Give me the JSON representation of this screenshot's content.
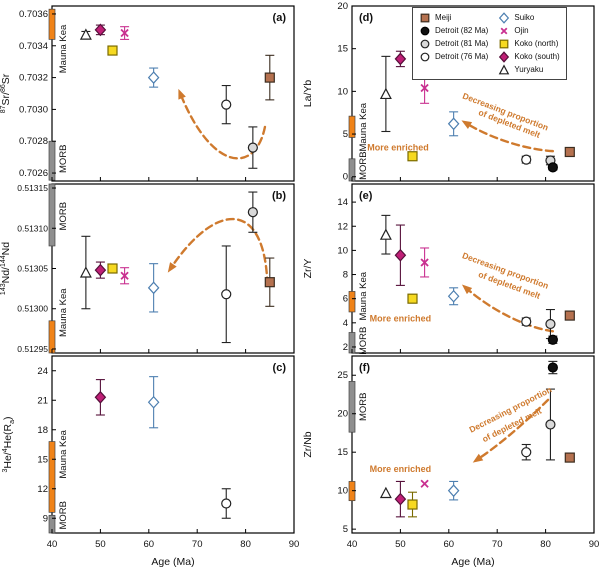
{
  "figure": {
    "xlabel": "Age (Ma)",
    "xlim": [
      40,
      90
    ],
    "x_ticks": [
      40,
      50,
      60,
      70,
      80,
      90
    ],
    "x_tick_labels": [
      "40",
      "50",
      "60",
      "70",
      "80",
      "90"
    ],
    "colors": {
      "arrow": "#cf7a2e",
      "morb": "#8f8f8f",
      "maunakea": "#f08318",
      "axis": "#000000",
      "background": "#ffffff"
    }
  },
  "markers": {
    "meiji": {
      "shape": "square",
      "fill": "#b5714f",
      "stroke": "#3c2d20",
      "label": "Meiji"
    },
    "detroit82": {
      "shape": "circle",
      "fill": "#111111",
      "stroke": "#000000",
      "label": "Detroit (82 Ma)"
    },
    "detroit81": {
      "shape": "circle",
      "fill": "#d9d9d9",
      "stroke": "#222222",
      "label": "Detroit (81 Ma)"
    },
    "detroit76": {
      "shape": "circle",
      "fill": "#ffffff",
      "stroke": "#222222",
      "label": "Detroit (76 Ma)"
    },
    "suiko": {
      "shape": "diamond",
      "fill": "#ffffff",
      "stroke": "#4d7fb0",
      "label": "Suiko"
    },
    "ojin": {
      "shape": "x",
      "fill": "none",
      "stroke": "#c93090",
      "label": "Ojin"
    },
    "kokoN": {
      "shape": "square",
      "fill": "#f6d921",
      "stroke": "#7a6a00",
      "label": "Koko (north)"
    },
    "kokoS": {
      "shape": "diamond",
      "fill": "#bf1f76",
      "stroke": "#55103a",
      "label": "Koko (south)"
    },
    "yuryaku": {
      "shape": "triangle",
      "fill": "#ffffff",
      "stroke": "#222222",
      "label": "Yuryaku"
    }
  },
  "legend": {
    "columns": [
      [
        "meiji",
        "detroit82",
        "detroit81",
        "detroit76"
      ],
      [
        "suiko",
        "ojin",
        "kokoN",
        "kokoS",
        "yuryaku"
      ]
    ]
  },
  "chart_data": [
    {
      "id": "a",
      "type": "scatter",
      "letter": "(a)",
      "letter_pos": "right",
      "ylabel": "^{87}Sr/^{86}Sr",
      "ylim": [
        0.70255,
        0.70365
      ],
      "y_ticks": [
        0.7026,
        0.7028,
        0.703,
        0.7032,
        0.7034,
        0.7036
      ],
      "y_tick_labels": [
        "0.7026",
        "0.7028",
        "0.7030",
        "0.7032",
        "0.7034",
        "0.7036"
      ],
      "bars": [
        {
          "name": "maunakea",
          "from": 0.70344,
          "to": 0.70363,
          "label": "Mauna Kea",
          "label_at": 0.70338
        },
        {
          "name": "morb",
          "from": 0.702555,
          "to": 0.7028,
          "label": "MORB",
          "label_at": 0.70269
        }
      ],
      "points": [
        {
          "s": "yuryaku",
          "x": 47,
          "y": 0.70347,
          "e": 2e-05
        },
        {
          "s": "kokoS",
          "x": 50,
          "y": 0.7035,
          "e": 3e-05
        },
        {
          "s": "kokoN",
          "x": 52.5,
          "y": 0.70337
        },
        {
          "s": "ojin",
          "x": 55,
          "y": 0.70348,
          "e": 4e-05
        },
        {
          "s": "suiko",
          "x": 61,
          "y": 0.7032,
          "e": 6e-05
        },
        {
          "s": "detroit76",
          "x": 76,
          "y": 0.70303,
          "e": 0.00012
        },
        {
          "s": "detroit81",
          "x": 81.5,
          "y": 0.70276,
          "e": 0.00013
        },
        {
          "s": "meiji",
          "x": 85,
          "y": 0.7032,
          "e": 0.00014
        }
      ],
      "arrow": [
        [
          84,
          0.70289
        ],
        [
          82,
          0.70259
        ],
        [
          73,
          0.70261
        ],
        [
          66.5,
          0.7031
        ]
      ],
      "annotations": []
    },
    {
      "id": "b",
      "type": "scatter",
      "letter": "(b)",
      "letter_pos": "right",
      "ylabel": "^{143}Nd/^{144}Nd",
      "ylim": [
        0.512945,
        0.513155
      ],
      "y_ticks": [
        0.51295,
        0.513,
        0.51305,
        0.5131,
        0.51315
      ],
      "y_tick_labels": [
        "0.51295",
        "0.51300",
        "0.51305",
        "0.51310",
        "0.51315"
      ],
      "bars": [
        {
          "name": "morb",
          "from": 0.513078,
          "to": 0.513155,
          "label": "MORB",
          "label_at": 0.513115
        },
        {
          "name": "maunakea",
          "from": 0.512945,
          "to": 0.512985,
          "label": "Mauna Kea",
          "label_at": 0.512995
        }
      ],
      "points": [
        {
          "s": "yuryaku",
          "x": 47,
          "y": 0.513045,
          "e": 4.5e-05
        },
        {
          "s": "kokoS",
          "x": 50,
          "y": 0.513048,
          "e": 1e-05
        },
        {
          "s": "kokoN",
          "x": 52.5,
          "y": 0.51305
        },
        {
          "s": "ojin",
          "x": 55,
          "y": 0.513041,
          "e": 1e-05
        },
        {
          "s": "suiko",
          "x": 61,
          "y": 0.513026,
          "e": 3e-05
        },
        {
          "s": "detroit76",
          "x": 76,
          "y": 0.513018,
          "e": 6e-05
        },
        {
          "s": "detroit81",
          "x": 81.5,
          "y": 0.51312,
          "e": 2.5e-05
        },
        {
          "s": "meiji",
          "x": 85,
          "y": 0.513033,
          "e": 3e-05
        }
      ],
      "arrow": [
        [
          84.5,
          0.51303
        ],
        [
          84,
          0.513135
        ],
        [
          74,
          0.513135
        ],
        [
          64.5,
          0.51305
        ]
      ],
      "annotations": []
    },
    {
      "id": "c",
      "type": "scatter",
      "letter": "(c)",
      "letter_pos": "right",
      "ylabel": "^{3}He/^{4}He(R_{a})",
      "ylim": [
        7.5,
        25.5
      ],
      "y_ticks": [
        9,
        12,
        15,
        18,
        21,
        24
      ],
      "y_tick_labels": [
        "9",
        "12",
        "15",
        "18",
        "21",
        "24"
      ],
      "bars": [
        {
          "name": "maunakea",
          "from": 9.6,
          "to": 16.8,
          "label": "Mauna Kea",
          "label_at": 15.5
        },
        {
          "name": "morb",
          "from": 7.5,
          "to": 9.3,
          "label": "MORB",
          "label_at": 9.3
        }
      ],
      "points": [
        {
          "s": "kokoS",
          "x": 50,
          "y": 21.3,
          "e": 1.8
        },
        {
          "s": "suiko",
          "x": 61,
          "y": 20.8,
          "e": 2.6
        },
        {
          "s": "detroit76",
          "x": 76,
          "y": 10.5,
          "e": 1.5
        }
      ],
      "arrow": null,
      "annotations": []
    },
    {
      "id": "d",
      "type": "scatter",
      "letter": "(d)",
      "letter_pos": "left",
      "show_legend": true,
      "ylabel": "La/Yb",
      "ylim": [
        -0.5,
        20
      ],
      "y_ticks": [
        0,
        5,
        10,
        15,
        20
      ],
      "y_tick_labels": [
        "0",
        "5",
        "10",
        "15",
        "20"
      ],
      "bars": [
        {
          "name": "maunakea",
          "from": 4.6,
          "to": 7.1,
          "label": "Mauna Kea",
          "label_at": 5.8
        },
        {
          "name": "morb",
          "from": -0.5,
          "to": 2.1,
          "label": "MORB",
          "label_at": 1.3
        }
      ],
      "points": [
        {
          "s": "yuryaku",
          "x": 47,
          "y": 9.7,
          "e": 4.4
        },
        {
          "s": "kokoS",
          "x": 50,
          "y": 13.8,
          "e": 0.9
        },
        {
          "s": "kokoN",
          "x": 52.5,
          "y": 2.4
        },
        {
          "s": "ojin",
          "x": 55,
          "y": 10.4,
          "e": 1.8
        },
        {
          "s": "suiko",
          "x": 61,
          "y": 6.2,
          "e": 1.4
        },
        {
          "s": "detroit76",
          "x": 76,
          "y": 2.0,
          "e": 0.4
        },
        {
          "s": "detroit81",
          "x": 81,
          "y": 1.9,
          "e": 0.5
        },
        {
          "s": "detroit82",
          "x": 81.5,
          "y": 1.1,
          "e": 0.3
        },
        {
          "s": "meiji",
          "x": 85,
          "y": 2.9
        }
      ],
      "arrow": [
        [
          81.5,
          3.0
        ],
        [
          76,
          3.2
        ],
        [
          69,
          4.4
        ],
        [
          63.5,
          6.3
        ]
      ],
      "annotations": [
        {
          "text": "More enriched",
          "x": 49.5,
          "y": 3.1,
          "rot": 0,
          "bold": true
        },
        {
          "text": "Decreasing proportion",
          "x": 71.5,
          "y": 7.3,
          "rot": 21
        },
        {
          "text": "of depleted melt",
          "x": 72.3,
          "y": 5.9,
          "rot": 21
        }
      ]
    },
    {
      "id": "e",
      "type": "scatter",
      "letter": "(e)",
      "letter_pos": "left",
      "ylabel": "Zr/Y",
      "ylim": [
        1.5,
        15.5
      ],
      "y_ticks": [
        2,
        4,
        6,
        8,
        10,
        12,
        14
      ],
      "y_tick_labels": [
        "2",
        "4",
        "6",
        "8",
        "10",
        "12",
        "14"
      ],
      "bars": [
        {
          "name": "maunakea",
          "from": 4.9,
          "to": 6.6,
          "label": "Mauna Kea",
          "label_at": 6.2
        },
        {
          "name": "morb",
          "from": 1.5,
          "to": 3.2,
          "label": "MORB",
          "label_at": 2.5
        }
      ],
      "points": [
        {
          "s": "yuryaku",
          "x": 47,
          "y": 11.3,
          "e": 1.6
        },
        {
          "s": "kokoS",
          "x": 50,
          "y": 9.6,
          "e": 2.5
        },
        {
          "s": "kokoN",
          "x": 52.5,
          "y": 6.0
        },
        {
          "s": "ojin",
          "x": 55,
          "y": 9.0,
          "e": 1.2
        },
        {
          "s": "suiko",
          "x": 61,
          "y": 6.2,
          "e": 0.7
        },
        {
          "s": "detroit76",
          "x": 76,
          "y": 4.1,
          "e": 0.3
        },
        {
          "s": "detroit81",
          "x": 81,
          "y": 3.9,
          "e": 1.2
        },
        {
          "s": "detroit82",
          "x": 81.5,
          "y": 2.6,
          "e": 0.3
        },
        {
          "s": "meiji",
          "x": 85,
          "y": 4.6
        }
      ],
      "arrow": [
        [
          81.5,
          3.3
        ],
        [
          76,
          3.6
        ],
        [
          69,
          5.0
        ],
        [
          63.5,
          6.9
        ]
      ],
      "annotations": [
        {
          "text": "More enriched",
          "x": 50,
          "y": 4.1,
          "rot": 0,
          "bold": true
        },
        {
          "text": "Decreasing proportion",
          "x": 71.5,
          "y": 8.1,
          "rot": 20
        },
        {
          "text": "of depleted melt",
          "x": 72.3,
          "y": 6.9,
          "rot": 20
        }
      ]
    },
    {
      "id": "f",
      "type": "scatter",
      "letter": "(f)",
      "letter_pos": "left",
      "ylabel": "Zr/Nb",
      "ylim": [
        4.5,
        27.5
      ],
      "y_ticks": [
        5,
        10,
        15,
        20,
        25
      ],
      "y_tick_labels": [
        "5",
        "10",
        "15",
        "20",
        "25"
      ],
      "bars": [
        {
          "name": "morb",
          "from": 17.6,
          "to": 24.2,
          "label": "MORB",
          "label_at": 20.9
        },
        {
          "name": "maunakea",
          "from": 8.7,
          "to": 11.2
        }
      ],
      "points": [
        {
          "s": "yuryaku",
          "x": 47,
          "y": 9.7
        },
        {
          "s": "kokoS",
          "x": 50,
          "y": 8.9,
          "e": 2.3
        },
        {
          "s": "kokoN",
          "x": 52.5,
          "y": 8.2,
          "e": 1.6
        },
        {
          "s": "ojin",
          "x": 55,
          "y": 10.9
        },
        {
          "s": "suiko",
          "x": 61,
          "y": 10.0,
          "e": 1.2
        },
        {
          "s": "detroit76",
          "x": 76,
          "y": 15.0,
          "e": 1.0
        },
        {
          "s": "detroit81",
          "x": 81,
          "y": 18.6,
          "e": 4.6
        },
        {
          "s": "detroit82",
          "x": 81.5,
          "y": 26.0,
          "e": 0.8
        },
        {
          "s": "meiji",
          "x": 85,
          "y": 14.3
        }
      ],
      "arrow": [
        [
          80.5,
          21.8
        ],
        [
          76,
          19.0
        ],
        [
          71,
          16.2
        ],
        [
          65.8,
          14.0
        ]
      ],
      "annotations": [
        {
          "text": "More enriched",
          "x": 50,
          "y": 12.4,
          "rot": 0,
          "bold": true
        },
        {
          "text": "Decreasing proportion",
          "x": 73,
          "y": 20.2,
          "rot": -27
        },
        {
          "text": "of depleted melt",
          "x": 73.3,
          "y": 18.2,
          "rot": -27
        }
      ]
    }
  ]
}
